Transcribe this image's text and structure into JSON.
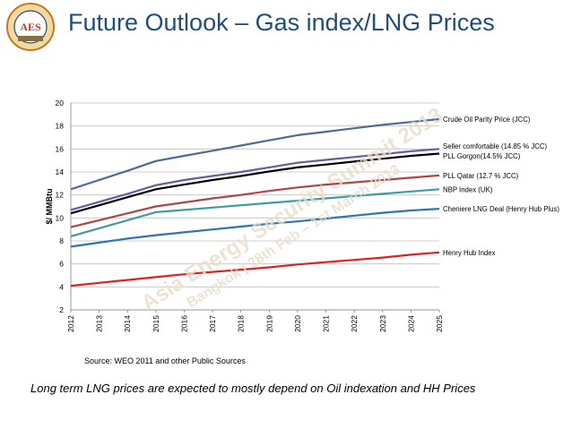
{
  "header": {
    "title": "Future Outlook – Gas index/LNG Prices",
    "logo_text": "AES",
    "logo_ring_text": "ASIA ENERGY SECURITY SUMMIT 2013"
  },
  "watermark": {
    "line1": "Asia Energy Security Summit 2013",
    "line2": "Bangkok | 28th Feb – 1st March 2013"
  },
  "footer": {
    "source": "Source:  WEO 2011 and other Public Sources",
    "caption": "Long term LNG prices are expected to mostly depend on Oil indexation and HH Prices"
  },
  "chart_data": {
    "type": "line",
    "title": "",
    "xlabel": "",
    "ylabel": "$/ MMBtu",
    "ylim": [
      2,
      20
    ],
    "yticks": [
      2,
      4,
      6,
      8,
      10,
      12,
      14,
      16,
      18,
      20
    ],
    "x": [
      "2012",
      "2013",
      "2014",
      "2015",
      "2016",
      "2017",
      "2018",
      "2019",
      "2020",
      "2021",
      "2022",
      "2023",
      "2024",
      "2025"
    ],
    "grid": "horizontal",
    "legend": "right-end labels",
    "series": [
      {
        "name": "Crude Oil Parity Price (JCC)",
        "color": "#4e6a96",
        "values": [
          12.5,
          13.3,
          14.1,
          14.95,
          15.4,
          15.85,
          16.3,
          16.75,
          17.2,
          17.5,
          17.8,
          18.1,
          18.35,
          18.6
        ]
      },
      {
        "name": "Seller comfortable  (14.85 % JCC)",
        "color": "#6b5c99",
        "values": [
          10.7,
          11.4,
          12.1,
          12.85,
          13.3,
          13.65,
          14.0,
          14.4,
          14.8,
          15.05,
          15.3,
          15.55,
          15.8,
          16.0
        ]
      },
      {
        "name": "PLL Gorgon(14.5% JCC)",
        "color": "#000000",
        "values": [
          10.4,
          11.1,
          11.8,
          12.5,
          12.9,
          13.3,
          13.65,
          14.05,
          14.4,
          14.65,
          14.9,
          15.15,
          15.4,
          15.6
        ]
      },
      {
        "name": "PLL Qatar (12.7 % JCC)",
        "color": "#b04545",
        "values": [
          9.2,
          9.8,
          10.4,
          11.0,
          11.35,
          11.7,
          12.0,
          12.35,
          12.65,
          12.9,
          13.1,
          13.3,
          13.5,
          13.7
        ]
      },
      {
        "name": "NBP Index (UK)",
        "color": "#3f9aa6",
        "values": [
          8.4,
          9.1,
          9.8,
          10.5,
          10.7,
          10.9,
          11.1,
          11.3,
          11.5,
          11.7,
          11.9,
          12.1,
          12.3,
          12.5
        ]
      },
      {
        "name": "Cheniere LNG Deal (Henry Hub Plus)",
        "color": "#2e75b6",
        "values": [
          7.5,
          7.85,
          8.2,
          8.5,
          8.75,
          9.0,
          9.25,
          9.5,
          9.7,
          9.95,
          10.2,
          10.45,
          10.65,
          10.8
        ]
      },
      {
        "name": "Henry Hub Index",
        "color": "#e02020",
        "values": [
          4.1,
          4.35,
          4.6,
          4.85,
          5.1,
          5.3,
          5.5,
          5.7,
          5.95,
          6.15,
          6.35,
          6.55,
          6.8,
          7.0
        ]
      }
    ]
  }
}
